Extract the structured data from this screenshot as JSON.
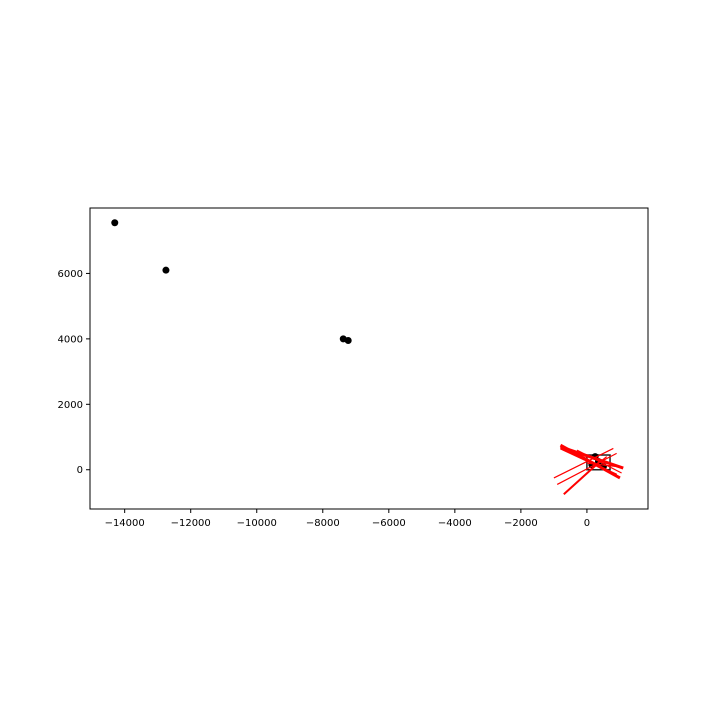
{
  "chart_data": {
    "type": "scatter",
    "title": "",
    "xlabel": "",
    "ylabel": "",
    "xlim": [
      -15050,
      1850
    ],
    "ylim": [
      -1200,
      8000
    ],
    "grid": false,
    "xticks": [
      -14000,
      -12000,
      -10000,
      -8000,
      -6000,
      -4000,
      -2000,
      0
    ],
    "xtick_labels": [
      "−14000",
      "−12000",
      "−10000",
      "−8000",
      "−6000",
      "−4000",
      "−2000",
      "0"
    ],
    "yticks": [
      0,
      2000,
      4000,
      6000
    ],
    "ytick_labels": [
      "0",
      "2000",
      "4000",
      "6000"
    ],
    "points": [
      {
        "x": -14300,
        "y": 7550
      },
      {
        "x": -12750,
        "y": 6100
      },
      {
        "x": -7380,
        "y": 4000
      },
      {
        "x": -7230,
        "y": 3950
      },
      {
        "x": 150,
        "y": 150
      },
      {
        "x": 350,
        "y": 250
      },
      {
        "x": 500,
        "y": 100
      },
      {
        "x": 250,
        "y": 400
      }
    ],
    "point_color": "#000000",
    "segments": [
      {
        "x1": -800,
        "y1": 750,
        "x2": 1000,
        "y2": -250,
        "width": 3
      },
      {
        "x1": -800,
        "y1": 700,
        "x2": 1100,
        "y2": 50,
        "width": 3
      },
      {
        "x1": -800,
        "y1": 650,
        "x2": 900,
        "y2": -150,
        "width": 2
      },
      {
        "x1": -700,
        "y1": -750,
        "x2": 450,
        "y2": 300,
        "width": 2
      },
      {
        "x1": -1000,
        "y1": -250,
        "x2": 800,
        "y2": 650,
        "width": 1.2
      },
      {
        "x1": -900,
        "y1": -450,
        "x2": 900,
        "y2": 500,
        "width": 1.2
      },
      {
        "x1": -300,
        "y1": 600,
        "x2": 1050,
        "y2": -100,
        "width": 1.2
      },
      {
        "x1": 0,
        "y1": 200,
        "x2": 900,
        "y2": 100,
        "width": 1.2
      },
      {
        "x1": 100,
        "y1": 0,
        "x2": 600,
        "y2": 400,
        "width": 1.2
      }
    ],
    "segment_color": "#ff0000",
    "box": {
      "x0": 0,
      "y0": 0,
      "x1": 700,
      "y1": 450
    }
  }
}
